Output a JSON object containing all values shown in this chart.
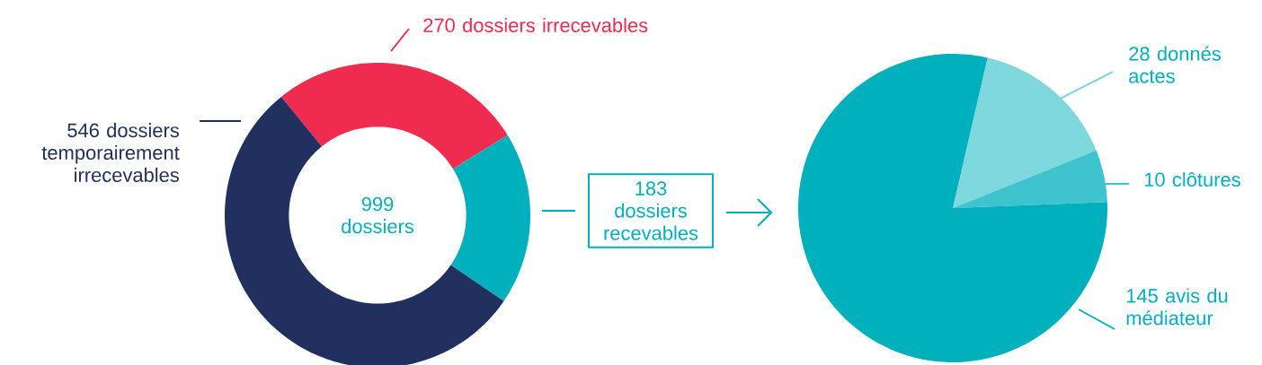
{
  "chart_data": [
    {
      "type": "donut",
      "categories": [
        "dossiers irrecevables",
        "dossiers recevables",
        "dossiers temporairement irrecevables"
      ],
      "values": [
        270,
        183,
        546
      ],
      "value_labels": [
        "270",
        "183",
        "546"
      ],
      "colors": [
        "#ef2b50",
        "#00b0bd",
        "#22305f"
      ],
      "annotations": [
        "999 dossiers"
      ]
    },
    {
      "type": "pie",
      "categories": [
        "donnés actes",
        "clôtures",
        "avis du médiateur"
      ],
      "values": [
        28,
        10,
        145
      ],
      "value_labels": [
        "28",
        "10",
        "145"
      ],
      "colors": [
        "#80d8df",
        "#3fc3cc",
        "#00b0bd"
      ]
    }
  ]
}
